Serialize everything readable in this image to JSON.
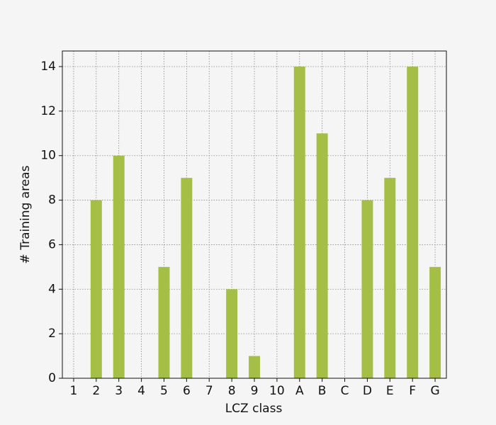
{
  "chart_data": {
    "type": "bar",
    "x_label": "LCZ class",
    "y_label": "# Training areas",
    "categories": [
      "1",
      "2",
      "3",
      "4",
      "5",
      "6",
      "7",
      "8",
      "9",
      "10",
      "A",
      "B",
      "C",
      "D",
      "E",
      "F",
      "G"
    ],
    "values": [
      0,
      8,
      10,
      0,
      5,
      9,
      0,
      4,
      1,
      0,
      14,
      11,
      0,
      8,
      9,
      14,
      5
    ],
    "color": "#a4be46",
    "ylim": [
      0,
      14.7
    ],
    "yticks": [
      0,
      2,
      4,
      6,
      8,
      10,
      12,
      14
    ],
    "grid": true
  }
}
